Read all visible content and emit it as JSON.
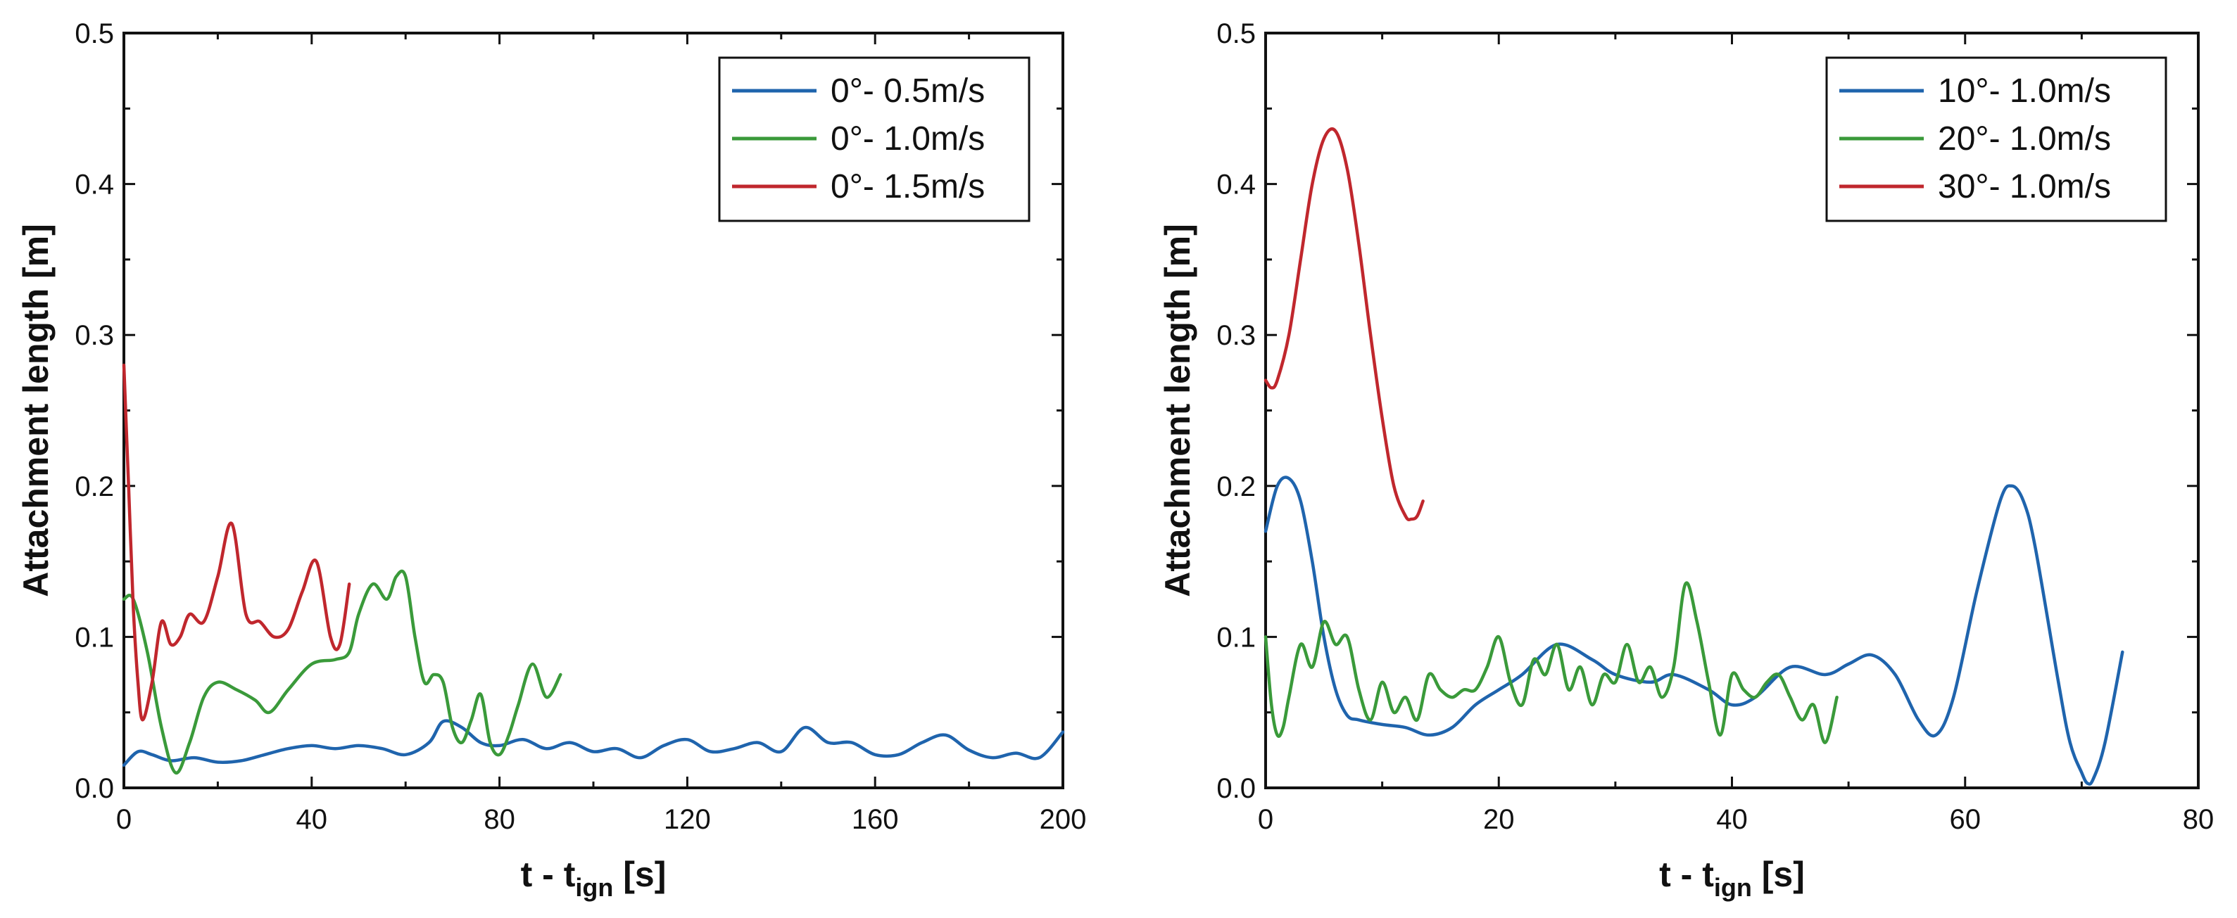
{
  "chart_data": [
    {
      "type": "line",
      "xlabel": {
        "main": "t - t",
        "sub": "ign",
        "unit": " [s]"
      },
      "ylabel": "Attachment length [m]",
      "xlim": [
        0,
        200
      ],
      "ylim": [
        0,
        0.5
      ],
      "xticks": [
        "0",
        "40",
        "80",
        "120",
        "160",
        "200"
      ],
      "yticks": [
        "0.0",
        "0.1",
        "0.2",
        "0.3",
        "0.4",
        "0.5"
      ],
      "legend_position": "top-right",
      "series": [
        {
          "name": "0°- 0.5m/s",
          "color": "#1f64ad",
          "x": [
            0,
            3,
            6,
            10,
            15,
            20,
            25,
            30,
            35,
            40,
            45,
            50,
            55,
            60,
            65,
            68,
            72,
            76,
            80,
            85,
            90,
            95,
            100,
            105,
            110,
            115,
            120,
            125,
            130,
            135,
            140,
            145,
            150,
            155,
            160,
            165,
            170,
            175,
            180,
            185,
            190,
            195,
            200
          ],
          "y": [
            0.015,
            0.024,
            0.022,
            0.018,
            0.02,
            0.017,
            0.018,
            0.022,
            0.026,
            0.028,
            0.026,
            0.028,
            0.026,
            0.022,
            0.03,
            0.044,
            0.04,
            0.03,
            0.028,
            0.032,
            0.026,
            0.03,
            0.024,
            0.026,
            0.02,
            0.028,
            0.032,
            0.024,
            0.026,
            0.03,
            0.024,
            0.04,
            0.03,
            0.03,
            0.022,
            0.022,
            0.03,
            0.035,
            0.025,
            0.02,
            0.023,
            0.02,
            0.037
          ]
        },
        {
          "name": "0°- 1.0m/s",
          "color": "#3a9a3a",
          "x": [
            0,
            2,
            5,
            8,
            11,
            14,
            17,
            20,
            24,
            28,
            31,
            35,
            40,
            45,
            48,
            50,
            53,
            56,
            58,
            60,
            62,
            64,
            66,
            68,
            70,
            72,
            74,
            76,
            78,
            80,
            82,
            84,
            87,
            90,
            93
          ],
          "y": [
            0.125,
            0.125,
            0.09,
            0.04,
            0.01,
            0.03,
            0.06,
            0.07,
            0.065,
            0.058,
            0.05,
            0.065,
            0.082,
            0.085,
            0.09,
            0.115,
            0.135,
            0.125,
            0.14,
            0.14,
            0.1,
            0.07,
            0.075,
            0.07,
            0.04,
            0.03,
            0.045,
            0.062,
            0.03,
            0.022,
            0.035,
            0.055,
            0.082,
            0.06,
            0.075
          ]
        },
        {
          "name": "0°- 1.5m/s",
          "color": "#c0272d",
          "x": [
            0,
            1,
            2,
            3,
            4,
            6,
            8,
            10,
            12,
            14,
            17,
            20,
            23,
            26,
            29,
            32,
            35,
            38,
            41,
            44,
            46,
            48
          ],
          "y": [
            0.28,
            0.2,
            0.12,
            0.07,
            0.045,
            0.07,
            0.11,
            0.095,
            0.1,
            0.115,
            0.11,
            0.14,
            0.175,
            0.115,
            0.11,
            0.1,
            0.105,
            0.13,
            0.15,
            0.1,
            0.095,
            0.135
          ]
        }
      ]
    },
    {
      "type": "line",
      "xlabel": {
        "main": "t - t",
        "sub": "ign",
        "unit": " [s]"
      },
      "ylabel": "Attachment length [m]",
      "xlim": [
        0,
        80
      ],
      "ylim": [
        0,
        0.5
      ],
      "xticks": [
        "0",
        "20",
        "40",
        "60",
        "80"
      ],
      "yticks": [
        "0.0",
        "0.1",
        "0.2",
        "0.3",
        "0.4",
        "0.5"
      ],
      "legend_position": "top-right",
      "series": [
        {
          "name": "10°- 1.0m/s",
          "color": "#1f64ad",
          "x": [
            0,
            1,
            2,
            3,
            4,
            5,
            6,
            7,
            8,
            10,
            12,
            14,
            16,
            18,
            20,
            22,
            25,
            28,
            30,
            33,
            35,
            38,
            40,
            42,
            45,
            48,
            50,
            52,
            54,
            56,
            57.5,
            59,
            61,
            63,
            64,
            65,
            66,
            68,
            69,
            70,
            70.5,
            71,
            72,
            73.5
          ],
          "y": [
            0.17,
            0.2,
            0.205,
            0.19,
            0.15,
            0.1,
            0.065,
            0.048,
            0.045,
            0.042,
            0.04,
            0.035,
            0.04,
            0.055,
            0.065,
            0.075,
            0.095,
            0.085,
            0.075,
            0.07,
            0.075,
            0.065,
            0.055,
            0.06,
            0.08,
            0.075,
            0.082,
            0.088,
            0.075,
            0.045,
            0.035,
            0.06,
            0.13,
            0.19,
            0.2,
            0.19,
            0.16,
            0.07,
            0.03,
            0.01,
            0.003,
            0.006,
            0.03,
            0.09
          ]
        },
        {
          "name": "20°- 1.0m/s",
          "color": "#3a9a3a",
          "x": [
            0,
            0.5,
            1,
            1.5,
            2,
            3,
            4,
            5,
            6,
            7,
            8,
            9,
            10,
            11,
            12,
            13,
            14,
            15,
            16,
            17,
            18,
            19,
            20,
            21,
            22,
            23,
            24,
            25,
            26,
            27,
            28,
            29,
            30,
            31,
            32,
            33,
            34,
            35,
            36,
            37,
            38,
            39,
            40,
            41,
            42,
            43,
            44,
            45,
            46,
            47,
            48,
            49
          ],
          "y": [
            0.1,
            0.055,
            0.035,
            0.04,
            0.06,
            0.095,
            0.08,
            0.11,
            0.095,
            0.1,
            0.065,
            0.045,
            0.07,
            0.05,
            0.06,
            0.045,
            0.075,
            0.065,
            0.06,
            0.065,
            0.065,
            0.08,
            0.1,
            0.07,
            0.055,
            0.085,
            0.075,
            0.095,
            0.065,
            0.08,
            0.055,
            0.075,
            0.07,
            0.095,
            0.07,
            0.08,
            0.06,
            0.08,
            0.135,
            0.11,
            0.07,
            0.035,
            0.075,
            0.065,
            0.06,
            0.07,
            0.075,
            0.06,
            0.045,
            0.055,
            0.03,
            0.06
          ]
        },
        {
          "name": "30°- 1.0m/s",
          "color": "#c0272d",
          "x": [
            0,
            0.5,
            1,
            2,
            3,
            4,
            5,
            6,
            7,
            8,
            9,
            10,
            11,
            12,
            12.5,
            13,
            13.5
          ],
          "y": [
            0.27,
            0.265,
            0.27,
            0.3,
            0.35,
            0.4,
            0.43,
            0.435,
            0.41,
            0.36,
            0.3,
            0.245,
            0.2,
            0.18,
            0.178,
            0.18,
            0.19
          ]
        }
      ]
    }
  ]
}
